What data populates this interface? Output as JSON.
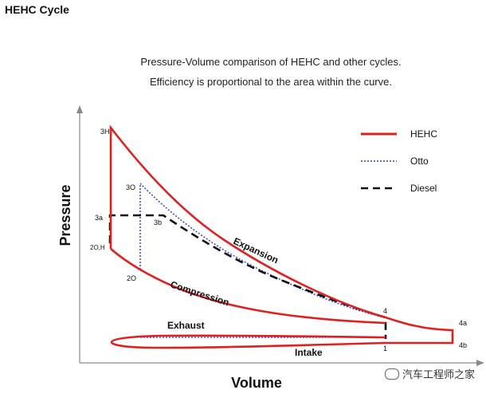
{
  "page_title": "HEHC Cycle",
  "chart_data": {
    "type": "line",
    "title_lines": [
      "Pressure-Volume comparison of HEHC and other cycles.",
      "Efficiency is proportional to the area within the curve."
    ],
    "xlabel": "Volume",
    "ylabel": "Pressure",
    "legend": {
      "placement": "top-right",
      "entries": [
        {
          "name": "HEHC",
          "style": "solid",
          "color": "#e02020"
        },
        {
          "name": "Otto",
          "style": "dotted",
          "color": "#3344cc"
        },
        {
          "name": "Diesel",
          "style": "dashed",
          "color": "#111111"
        }
      ]
    },
    "point_labels": {
      "p3H": "3H",
      "p3O": "3O",
      "p3a": "3a",
      "p3b": "3b",
      "p2OH": "2O,H",
      "p2O": "2O",
      "p4": "4",
      "p4a": "4a",
      "p4b": "4b",
      "p1": "1"
    },
    "annotations": {
      "expansion": "Expansion",
      "compression": "Compression",
      "exhaust": "Exhaust",
      "intake": "Intake"
    }
  },
  "watermark": "汽车工程师之家"
}
